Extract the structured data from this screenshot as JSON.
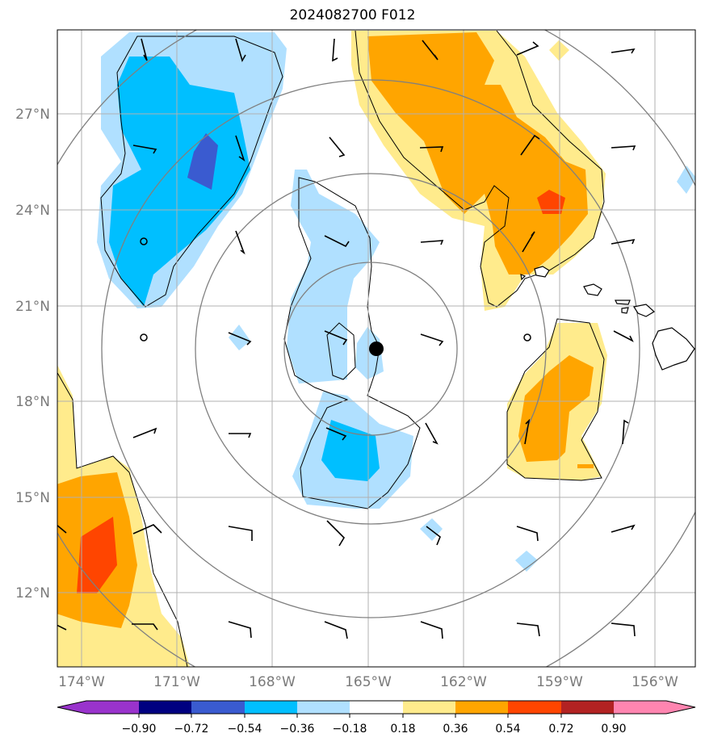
{
  "title": "2024082700 F012",
  "lat_labels": [
    "27°N",
    "24°N",
    "21°N",
    "18°N",
    "15°N",
    "12°N"
  ],
  "lon_labels": [
    "174°W",
    "171°W",
    "168°W",
    "165°W",
    "162°W",
    "159°W",
    "156°W"
  ],
  "colorbar": {
    "ticks": [
      "−0.90",
      "−0.72",
      "−0.54",
      "−0.36",
      "−0.18",
      "0.18",
      "0.36",
      "0.54",
      "0.72",
      "0.90"
    ],
    "colors": [
      "#9933cc",
      "#000080",
      "#3a5bd0",
      "#00bfff",
      "#b0e0ff",
      "#ffffff",
      "#ffeb8c",
      "#ffa500",
      "#ff4500",
      "#b22222",
      "#ff85b0"
    ]
  },
  "storm_center": {
    "lat": "19.7°N",
    "lon": "164.8°W"
  },
  "colors": {
    "neg_light": "#b0e0ff",
    "neg_mid": "#00bfff",
    "neg_dark": "#3a5bd0",
    "pos_light": "#ffeb8c",
    "pos_mid": "#ffa500",
    "pos_dark": "#ff4500"
  }
}
